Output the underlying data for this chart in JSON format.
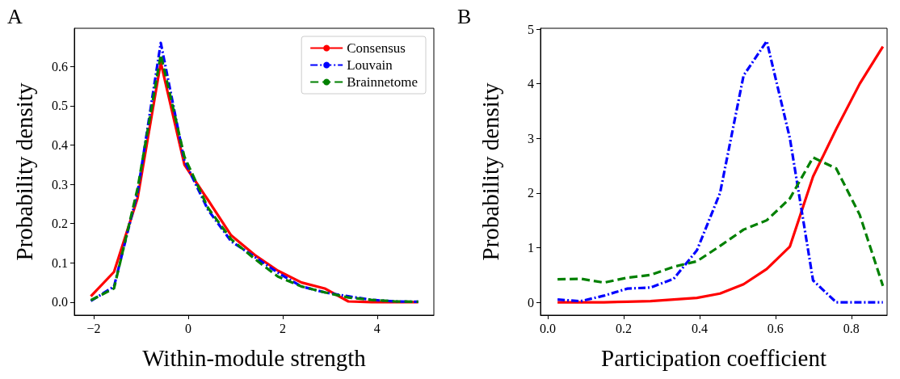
{
  "chart_data": [
    {
      "type": "line",
      "title": "A",
      "xlabel": "Within-module strength",
      "ylabel": "Probability density",
      "legend": "top right",
      "grid": false,
      "xlim": [
        -2.41,
        5.2
      ],
      "ylim": [
        -0.033,
        0.697
      ],
      "xticks": [
        {
          "value": -2,
          "label": "−2"
        },
        0,
        2,
        4
      ],
      "yticks": [
        {
          "value": 0,
          "label": "0.0"
        },
        0.1,
        0.2,
        0.3,
        0.4,
        0.5,
        0.6
      ],
      "series": [
        {
          "name": "Consensus",
          "color": "#ff0000",
          "line_style": "solid",
          "x": [
            -2.06,
            -1.57,
            -1.07,
            -0.58,
            -0.08,
            0.42,
            0.91,
            1.41,
            1.9,
            2.4,
            2.89,
            3.39,
            3.88,
            4.38,
            4.87
          ],
          "values": [
            0.015,
            0.077,
            0.265,
            0.61,
            0.35,
            0.26,
            0.17,
            0.12,
            0.08,
            0.05,
            0.035,
            0.002,
            0.0,
            0.0,
            0.0
          ]
        },
        {
          "name": "Louvain",
          "color": "#0000ff",
          "line_style": "dashdot",
          "x": [
            -2.06,
            -1.57,
            -1.07,
            -0.58,
            -0.08,
            0.42,
            0.91,
            1.41,
            1.9,
            2.4,
            2.89,
            3.39,
            3.88,
            4.38,
            4.87
          ],
          "values": [
            0.003,
            0.04,
            0.28,
            0.66,
            0.36,
            0.235,
            0.155,
            0.115,
            0.075,
            0.04,
            0.025,
            0.015,
            0.006,
            0.002,
            0.001
          ]
        },
        {
          "name": "Brainnetome",
          "color": "#008000",
          "line_style": "dashed",
          "x": [
            -2.06,
            -1.57,
            -1.07,
            -0.58,
            -0.08,
            0.42,
            0.91,
            1.41,
            1.9,
            2.4,
            2.89,
            3.39,
            3.88,
            4.38,
            4.87
          ],
          "values": [
            0.005,
            0.035,
            0.29,
            0.63,
            0.37,
            0.24,
            0.16,
            0.11,
            0.065,
            0.04,
            0.025,
            0.012,
            0.006,
            0.002,
            0.001
          ]
        }
      ]
    },
    {
      "type": "line",
      "title": "B",
      "xlabel": "Participation coefficient",
      "ylabel": "Probability density",
      "grid": false,
      "xlim": [
        -0.019,
        0.894
      ],
      "ylim": [
        -0.236,
        5.015
      ],
      "xticks": [
        {
          "value": 0,
          "label": "0.0"
        },
        0.2,
        0.4,
        0.6,
        0.8
      ],
      "yticks": [
        0,
        1,
        2,
        3,
        4,
        5
      ],
      "series": [
        {
          "color": "#ff0000",
          "line_style": "solid",
          "x": [
            0.026,
            0.087,
            0.148,
            0.21,
            0.271,
            0.332,
            0.393,
            0.454,
            0.516,
            0.577,
            0.638,
            0.699,
            0.76,
            0.822,
            0.883
          ],
          "values": [
            0,
            0,
            0,
            0.01,
            0.02,
            0.05,
            0.08,
            0.16,
            0.33,
            0.61,
            1.02,
            2.3,
            3.17,
            4.0,
            4.68
          ]
        },
        {
          "color": "#0000ff",
          "line_style": "dashdot",
          "x": [
            0.026,
            0.087,
            0.148,
            0.21,
            0.271,
            0.332,
            0.393,
            0.454,
            0.516,
            0.577,
            0.638,
            0.699,
            0.76,
            0.822,
            0.883
          ],
          "values": [
            0.05,
            0.02,
            0.12,
            0.25,
            0.27,
            0.43,
            0.95,
            2.0,
            4.15,
            4.78,
            3.0,
            0.4,
            0.0,
            0.0,
            0.0
          ]
        },
        {
          "color": "#008000",
          "line_style": "dashed",
          "x": [
            0.026,
            0.087,
            0.148,
            0.21,
            0.271,
            0.332,
            0.393,
            0.454,
            0.516,
            0.577,
            0.638,
            0.699,
            0.76,
            0.822,
            0.883
          ],
          "values": [
            0.42,
            0.43,
            0.36,
            0.45,
            0.5,
            0.65,
            0.75,
            1.03,
            1.33,
            1.5,
            1.9,
            2.65,
            2.45,
            1.6,
            0.3
          ]
        }
      ]
    }
  ]
}
